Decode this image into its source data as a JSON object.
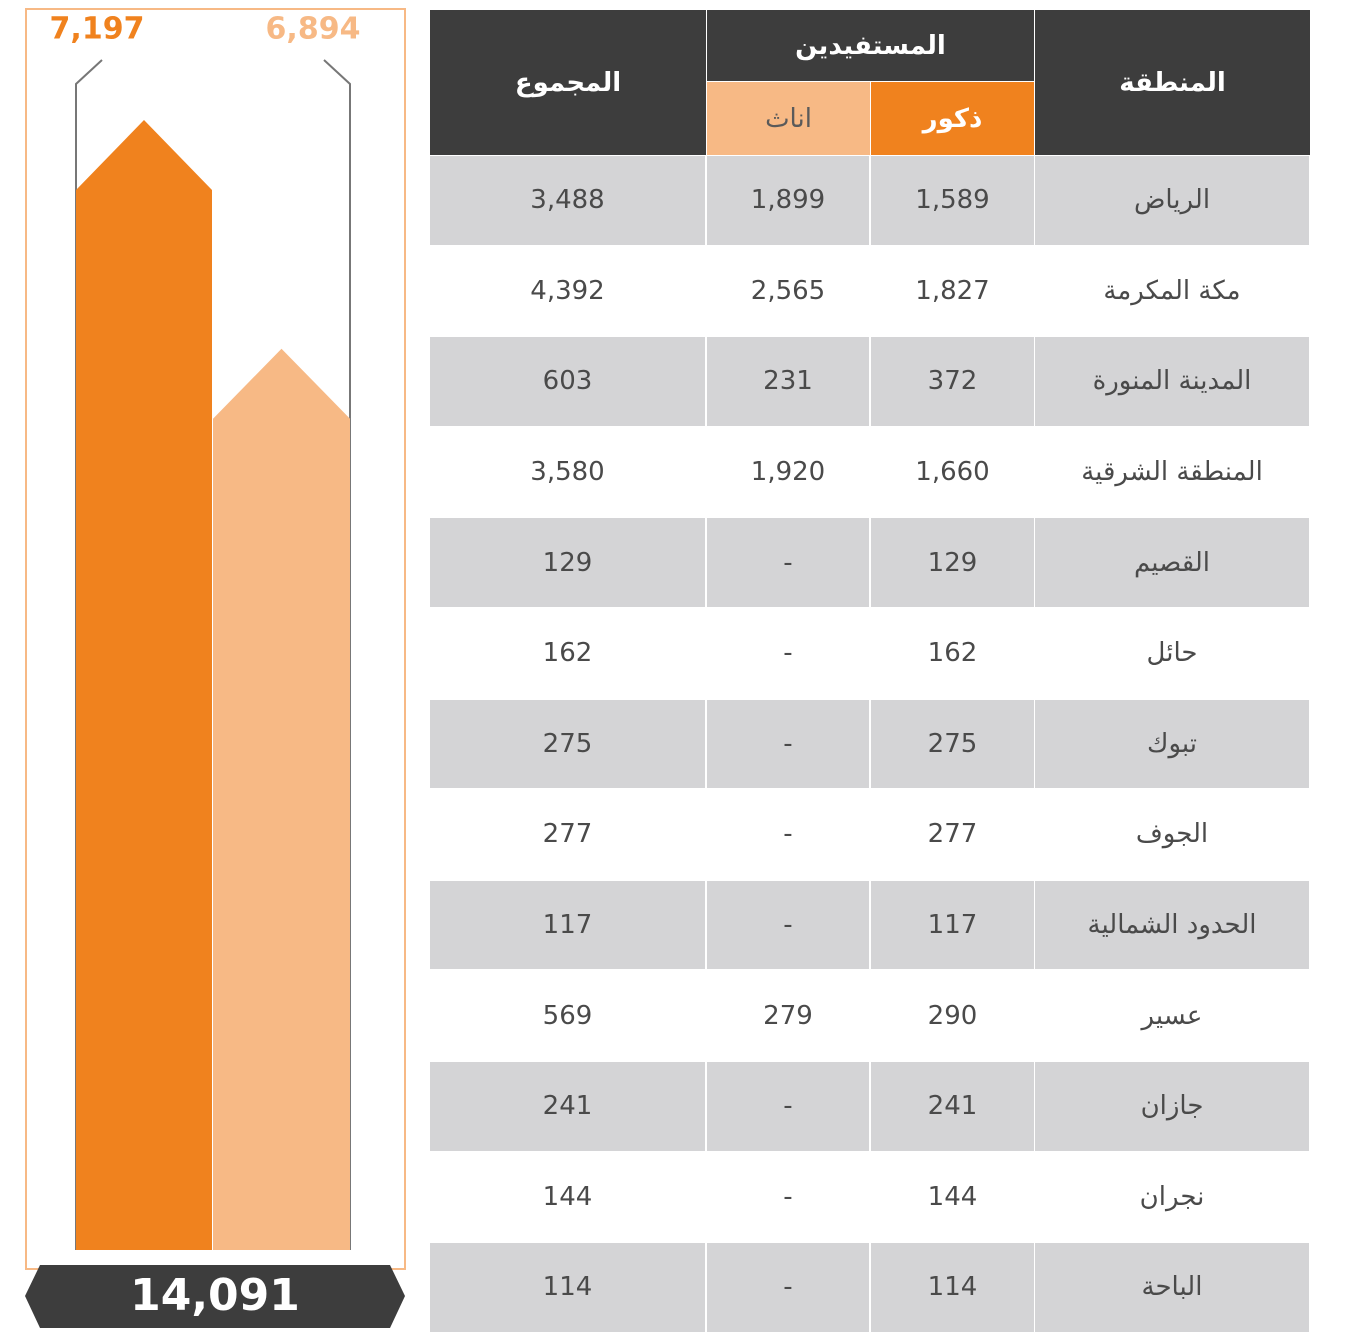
{
  "chart_data": {
    "type": "bar",
    "values": [
      7197,
      6894
    ],
    "value_labels": [
      "7,197",
      "6,894"
    ],
    "colors": [
      "#f0821e",
      "#f7b985"
    ],
    "ylim": [
      5700,
      7250
    ],
    "total": "14,091"
  },
  "table": {
    "headers": {
      "region": "المنطقة",
      "beneficiaries": "المستفيدين",
      "males": "ذكور",
      "females": "اناث",
      "total": "المجموع"
    },
    "rows": [
      [
        "الرياض",
        "1,589",
        "1,899",
        "3,488"
      ],
      [
        "مكة المكرمة",
        "1,827",
        "2,565",
        "4,392"
      ],
      [
        "المدينة المنورة",
        "372",
        "231",
        "603"
      ],
      [
        "المنطقة الشرقية",
        "1,660",
        "1,920",
        "3,580"
      ],
      [
        "القصيم",
        "129",
        "-",
        "129"
      ],
      [
        "حائل",
        "162",
        "-",
        "162"
      ],
      [
        "تبوك",
        "275",
        "-",
        "275"
      ],
      [
        "الجوف",
        "277",
        "-",
        "277"
      ],
      [
        "الحدود الشمالية",
        "117",
        "-",
        "117"
      ],
      [
        "عسير",
        "290",
        "279",
        "569"
      ],
      [
        "جازان",
        "241",
        "-",
        "241"
      ],
      [
        "نجران",
        "144",
        "-",
        "144"
      ],
      [
        "الباحة",
        "114",
        "-",
        "114"
      ]
    ]
  }
}
